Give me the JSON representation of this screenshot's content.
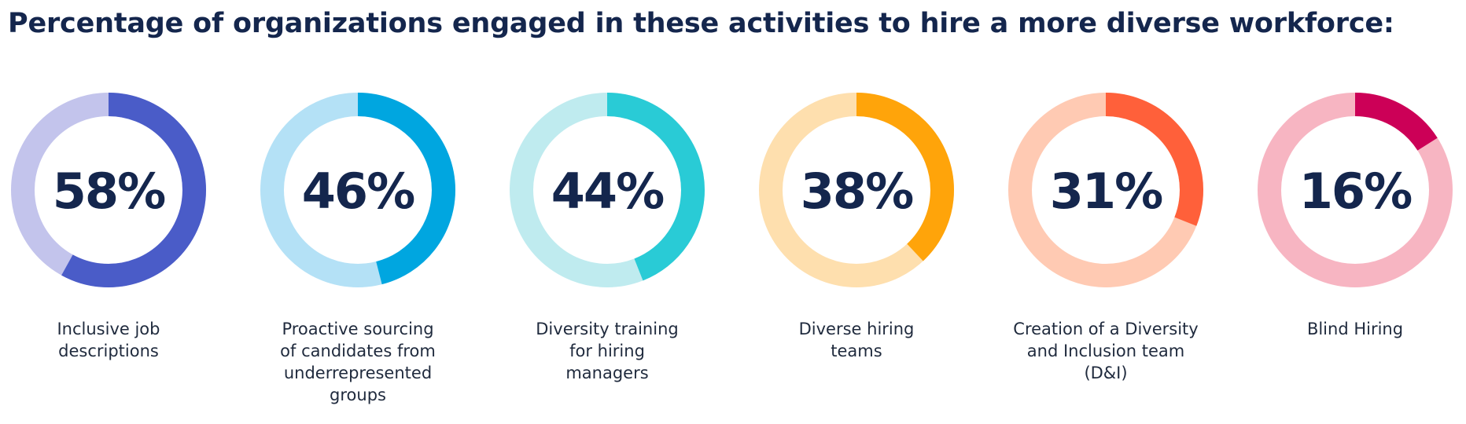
{
  "title": "Percentage of organizations engaged in these activities to hire a more diverse workforce:",
  "chart_data": {
    "type": "donut",
    "title": "Percentage of organizations engaged in these activities to hire a more diverse workforce:",
    "unit": "%",
    "items": [
      {
        "label": "Inclusive job\ndescriptions",
        "value": 58,
        "value_label": "58%",
        "color": "#4a5cc8",
        "track_color": "#c3c4ec"
      },
      {
        "label": "Proactive sourcing\nof candidates from\nunderrepresented\ngroups",
        "value": 46,
        "value_label": "46%",
        "color": "#00a6e0",
        "track_color": "#b4e1f6"
      },
      {
        "label": "Diversity training\nfor hiring\nmanagers",
        "value": 44,
        "value_label": "44%",
        "color": "#29cbd6",
        "track_color": "#bfebef"
      },
      {
        "label": "Diverse hiring\nteams",
        "value": 38,
        "value_label": "38%",
        "color": "#ffa40a",
        "track_color": "#fedfae"
      },
      {
        "label": "Creation of a Diversity\nand Inclusion team\n(D&I)",
        "value": 31,
        "value_label": "31%",
        "color": "#ff603a",
        "track_color": "#ffcab3"
      },
      {
        "label": "Blind Hiring",
        "value": 16,
        "value_label": "16%",
        "color": "#cc0057",
        "track_color": "#f7b5c2"
      }
    ],
    "value_text_color": "#14264d"
  }
}
